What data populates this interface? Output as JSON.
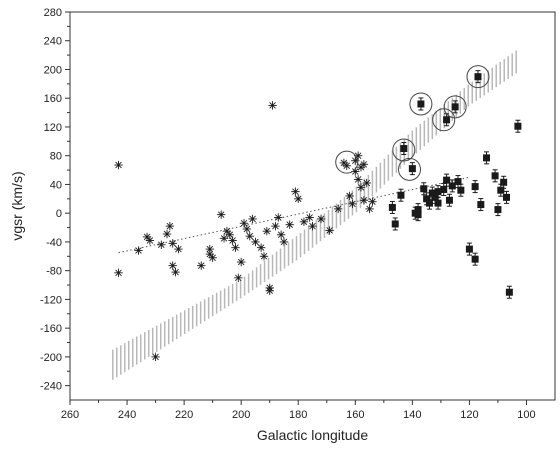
{
  "chart_data": {
    "type": "scatter",
    "xlabel": "Galactic longitude",
    "ylabel": "vgsr (km/s)",
    "xlim": [
      260,
      90
    ],
    "ylim": [
      -260,
      280
    ],
    "x_reversed": true,
    "x_ticks": [
      260,
      240,
      220,
      200,
      180,
      160,
      140,
      120,
      100
    ],
    "y_ticks": [
      -240,
      -200,
      -160,
      -120,
      -80,
      -40,
      0,
      40,
      80,
      120,
      160,
      200,
      240,
      280
    ],
    "grid": false,
    "legend": "none",
    "colors": {
      "points": "#1a1a1a",
      "band": "#b8b8b8",
      "trend": "#555555"
    },
    "series": [
      {
        "marker": "asterisk",
        "points": [
          [
            243,
            67
          ],
          [
            243,
            -83
          ],
          [
            236,
            -52
          ],
          [
            233,
            -33
          ],
          [
            232,
            -38
          ],
          [
            230,
            -200
          ],
          [
            228,
            -44
          ],
          [
            226,
            -29
          ],
          [
            225,
            -18
          ],
          [
            224,
            -42
          ],
          [
            224,
            -73
          ],
          [
            223,
            -82
          ],
          [
            222,
            -50
          ],
          [
            214,
            -73
          ],
          [
            211,
            -50
          ],
          [
            211,
            -57
          ],
          [
            210,
            -62
          ],
          [
            207,
            -2
          ],
          [
            206,
            -35
          ],
          [
            205,
            -25
          ],
          [
            204,
            -30
          ],
          [
            203,
            -38
          ],
          [
            202,
            -48
          ],
          [
            201,
            -90
          ],
          [
            200,
            -68
          ],
          [
            199,
            -14
          ],
          [
            198,
            -22
          ],
          [
            197,
            -32
          ],
          [
            196,
            -8
          ],
          [
            195,
            -40
          ],
          [
            193,
            -48
          ],
          [
            192,
            -60
          ],
          [
            191,
            -25
          ],
          [
            190,
            -104
          ],
          [
            190,
            -108
          ],
          [
            189,
            150
          ],
          [
            188,
            -18
          ],
          [
            187,
            -6
          ],
          [
            186,
            -30
          ],
          [
            185,
            -40
          ],
          [
            183,
            -16
          ],
          [
            181,
            30
          ],
          [
            180,
            20
          ],
          [
            178,
            -12
          ],
          [
            176,
            -6
          ],
          [
            175,
            -18
          ],
          [
            172,
            -8
          ],
          [
            169,
            -24
          ],
          [
            166,
            6
          ],
          [
            164,
            70
          ],
          [
            163,
            66
          ],
          [
            162,
            24
          ],
          [
            161,
            13
          ],
          [
            160,
            73
          ],
          [
            160,
            58
          ],
          [
            159,
            80
          ],
          [
            159,
            47
          ],
          [
            158,
            64
          ],
          [
            158,
            36
          ],
          [
            157,
            68
          ],
          [
            157,
            18
          ],
          [
            156,
            42
          ],
          [
            155,
            6
          ],
          [
            154,
            16
          ]
        ]
      },
      {
        "marker": "square-with-errorbar",
        "points": [
          [
            147,
            8
          ],
          [
            146,
            -15
          ],
          [
            144,
            25
          ],
          [
            143,
            90
          ],
          [
            140,
            62
          ],
          [
            139,
            0
          ],
          [
            138,
            5
          ],
          [
            138,
            -2
          ],
          [
            137,
            152
          ],
          [
            136,
            34
          ],
          [
            135,
            20
          ],
          [
            134,
            14
          ],
          [
            133,
            28
          ],
          [
            132,
            22
          ],
          [
            131,
            14
          ],
          [
            131,
            30
          ],
          [
            129,
            33
          ],
          [
            128,
            46
          ],
          [
            128,
            130
          ],
          [
            127,
            18
          ],
          [
            126,
            38
          ],
          [
            125,
            148
          ],
          [
            124,
            44
          ],
          [
            123,
            32
          ],
          [
            120,
            -50
          ],
          [
            118,
            37
          ],
          [
            118,
            -64
          ],
          [
            117,
            190
          ],
          [
            116,
            12
          ],
          [
            114,
            77
          ],
          [
            111,
            52
          ],
          [
            110,
            5
          ],
          [
            109,
            32
          ],
          [
            108,
            43
          ],
          [
            107,
            22
          ],
          [
            106,
            -110
          ],
          [
            103,
            121
          ]
        ]
      },
      {
        "marker": "circle",
        "points": [
          [
            163,
            71
          ],
          [
            143,
            88
          ],
          [
            141,
            61
          ],
          [
            137,
            152
          ],
          [
            129,
            130
          ],
          [
            125,
            148
          ],
          [
            117,
            190
          ]
        ]
      }
    ],
    "band": {
      "style": "hatched",
      "upper": [
        [
          245,
          -190
        ],
        [
          200,
          -92
        ],
        [
          180,
          -30
        ],
        [
          160,
          35
        ],
        [
          140,
          115
        ],
        [
          120,
          180
        ],
        [
          103,
          228
        ]
      ],
      "lower": [
        [
          245,
          -232
        ],
        [
          200,
          -118
        ],
        [
          180,
          -64
        ],
        [
          160,
          0
        ],
        [
          140,
          78
        ],
        [
          120,
          150
        ],
        [
          103,
          196
        ]
      ]
    },
    "trend_line": {
      "style": "dotted",
      "points": [
        [
          243,
          -55
        ],
        [
          120,
          50
        ]
      ]
    }
  }
}
